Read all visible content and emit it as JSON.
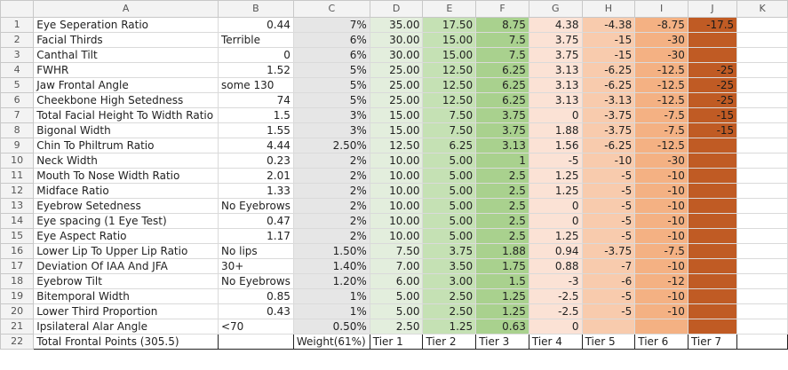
{
  "columns": [
    "A",
    "B",
    "C",
    "D",
    "E",
    "F",
    "G",
    "H",
    "I",
    "J",
    "K"
  ],
  "rows": [
    {
      "n": "1",
      "a": "Eye Seperation Ratio",
      "b": "0.44",
      "c": "7%",
      "d": "35.00",
      "e": "17.50",
      "f": "8.75",
      "g": "4.38",
      "h": "-4.38",
      "i": "-8.75",
      "j": "-17.5"
    },
    {
      "n": "2",
      "a": "Facial Thirds",
      "b": "Terrible",
      "c": "6%",
      "d": "30.00",
      "e": "15.00",
      "f": "7.5",
      "g": "3.75",
      "h": "-15",
      "i": "-30",
      "j": ""
    },
    {
      "n": "3",
      "a": "Canthal Tilt",
      "b": "0",
      "c": "6%",
      "d": "30.00",
      "e": "15.00",
      "f": "7.5",
      "g": "3.75",
      "h": "-15",
      "i": "-30",
      "j": ""
    },
    {
      "n": "4",
      "a": "FWHR",
      "b": "1.52",
      "c": "5%",
      "d": "25.00",
      "e": "12.50",
      "f": "6.25",
      "g": "3.13",
      "h": "-6.25",
      "i": "-12.5",
      "j": "-25"
    },
    {
      "n": "5",
      "a": "Jaw Frontal Angle",
      "b": "some 130",
      "c": "5%",
      "d": "25.00",
      "e": "12.50",
      "f": "6.25",
      "g": "3.13",
      "h": "-6.25",
      "i": "-12.5",
      "j": "-25"
    },
    {
      "n": "6",
      "a": "Cheekbone High Setedness",
      "b": "74",
      "c": "5%",
      "d": "25.00",
      "e": "12.50",
      "f": "6.25",
      "g": "3.13",
      "h": "-3.13",
      "i": "-12.5",
      "j": "-25"
    },
    {
      "n": "7",
      "a": "Total Facial Height To Width Ratio",
      "b": "1.5",
      "c": "3%",
      "d": "15.00",
      "e": "7.50",
      "f": "3.75",
      "g": "0",
      "h": "-3.75",
      "i": "-7.5",
      "j": "-15"
    },
    {
      "n": "8",
      "a": "Bigonal Width",
      "b": "1.55",
      "c": "3%",
      "d": "15.00",
      "e": "7.50",
      "f": "3.75",
      "g": "1.88",
      "h": "-3.75",
      "i": "-7.5",
      "j": "-15"
    },
    {
      "n": "9",
      "a": "Chin To Philtrum Ratio",
      "b": "4.44",
      "c": "2.50%",
      "d": "12.50",
      "e": "6.25",
      "f": "3.13",
      "g": "1.56",
      "h": "-6.25",
      "i": "-12.5",
      "j": ""
    },
    {
      "n": "10",
      "a": "Neck Width",
      "b": "0.23",
      "c": "2%",
      "d": "10.00",
      "e": "5.00",
      "f": "1",
      "g": "-5",
      "h": "-10",
      "i": "-30",
      "j": ""
    },
    {
      "n": "11",
      "a": "Mouth To Nose Width Ratio",
      "b": "2.01",
      "c": "2%",
      "d": "10.00",
      "e": "5.00",
      "f": "2.5",
      "g": "1.25",
      "h": "-5",
      "i": "-10",
      "j": ""
    },
    {
      "n": "12",
      "a": "Midface Ratio",
      "b": "1.33",
      "c": "2%",
      "d": "10.00",
      "e": "5.00",
      "f": "2.5",
      "g": "1.25",
      "h": "-5",
      "i": "-10",
      "j": ""
    },
    {
      "n": "13",
      "a": "Eyebrow Setedness",
      "b": "No Eyebrows",
      "c": "2%",
      "d": "10.00",
      "e": "5.00",
      "f": "2.5",
      "g": "0",
      "h": "-5",
      "i": "-10",
      "j": ""
    },
    {
      "n": "14",
      "a": "Eye spacing (1 Eye Test)",
      "b": "0.47",
      "c": "2%",
      "d": "10.00",
      "e": "5.00",
      "f": "2.5",
      "g": "0",
      "h": "-5",
      "i": "-10",
      "j": ""
    },
    {
      "n": "15",
      "a": "Eye Aspect Ratio",
      "b": "1.17",
      "c": "2%",
      "d": "10.00",
      "e": "5.00",
      "f": "2.5",
      "g": "1.25",
      "h": "-5",
      "i": "-10",
      "j": ""
    },
    {
      "n": "16",
      "a": "Lower Lip To Upper Lip Ratio",
      "b": "No lips",
      "c": "1.50%",
      "d": "7.50",
      "e": "3.75",
      "f": "1.88",
      "g": "0.94",
      "h": "-3.75",
      "i": "-7.5",
      "j": ""
    },
    {
      "n": "17",
      "a": "Deviation Of IAA And JFA",
      "b": "30+",
      "c": "1.40%",
      "d": "7.00",
      "e": "3.50",
      "f": "1.75",
      "g": "0.88",
      "h": "-7",
      "i": "-10",
      "j": ""
    },
    {
      "n": "18",
      "a": "Eyebrow Tilt",
      "b": "No Eyebrows",
      "c": "1.20%",
      "d": "6.00",
      "e": "3.00",
      "f": "1.5",
      "g": "-3",
      "h": "-6",
      "i": "-12",
      "j": ""
    },
    {
      "n": "19",
      "a": "Bitemporal Width",
      "b": "0.85",
      "c": "1%",
      "d": "5.00",
      "e": "2.50",
      "f": "1.25",
      "g": "-2.5",
      "h": "-5",
      "i": "-10",
      "j": ""
    },
    {
      "n": "20",
      "a": "Lower Third Proportion",
      "b": "0.43",
      "c": "1%",
      "d": "5.00",
      "e": "2.50",
      "f": "1.25",
      "g": "-2.5",
      "h": "-5",
      "i": "-10",
      "j": ""
    },
    {
      "n": "21",
      "a": "Ipsilateral Alar Angle",
      "b": "<70",
      "c": "0.50%",
      "d": "2.50",
      "e": "1.25",
      "f": "0.63",
      "g": "0",
      "h": "",
      "i": "",
      "j": ""
    }
  ],
  "footer": {
    "n": "22",
    "a": "Total Frontal Points (305.5)",
    "b": "",
    "c": "Weight(61%)",
    "d": "Tier 1",
    "e": "Tier 2",
    "f": "Tier 3",
    "g": "Tier 4",
    "h": "Tier 5",
    "i": "Tier 6",
    "j": "Tier 7"
  },
  "colors": {
    "tier1": "#e3eedd",
    "tier2": "#c5e1b4",
    "tier3": "#a9d18e",
    "tier4": "#fbe2d5",
    "tier5": "#f8cbad",
    "tier6": "#f4b183",
    "tier7": "#c05b24",
    "weight": "#e6e6e6"
  }
}
